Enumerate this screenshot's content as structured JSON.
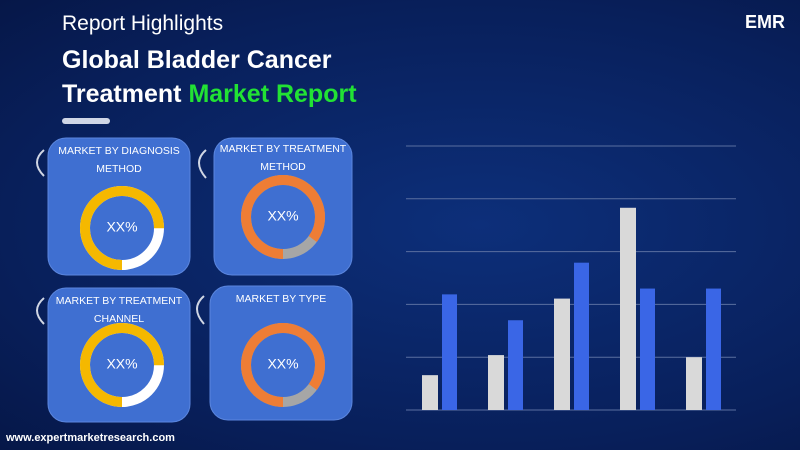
{
  "header": {
    "subtitle": "Report Highlights",
    "title_line1": "Global Bladder Cancer",
    "title_line2_part1": "Treatment",
    "title_line2_part2": "Market Report"
  },
  "logo": {
    "text": "EMR"
  },
  "panels": [
    {
      "title": "MARKET BY DIAGNOSIS METHOD",
      "value_label": "XX%",
      "share": 75,
      "color": "#f5b800",
      "track": "#ffffff"
    },
    {
      "title": "MARKET BY TREATMENT METHOD",
      "value_label": "XX%",
      "share": 85,
      "color": "#ee7d35",
      "track": "#a6a6a6"
    },
    {
      "title": "MARKET BY TREATMENT CHANNEL",
      "value_label": "XX%",
      "share": 75,
      "color": "#f5b800",
      "track": "#ffffff"
    },
    {
      "title": "MARKET BY TYPE",
      "value_label": "XX%",
      "share": 85,
      "color": "#ee7d35",
      "track": "#a6a6a6"
    }
  ],
  "chart_data": {
    "type": "bar",
    "categories": [
      null,
      null,
      null,
      null,
      null
    ],
    "series": [
      {
        "color": "#d9d9d9",
        "values": [
          0.66,
          1.04,
          2.11,
          3.83,
          1.0
        ]
      },
      {
        "color": "#3a66e6",
        "values": [
          2.19,
          1.7,
          2.79,
          2.3,
          2.3
        ]
      }
    ],
    "ylim": [
      0,
      5
    ],
    "yticks": [
      0,
      1,
      2,
      3,
      4,
      5
    ],
    "grid": true
  },
  "footer": {
    "url": "www.expertmarketresearch.com"
  }
}
